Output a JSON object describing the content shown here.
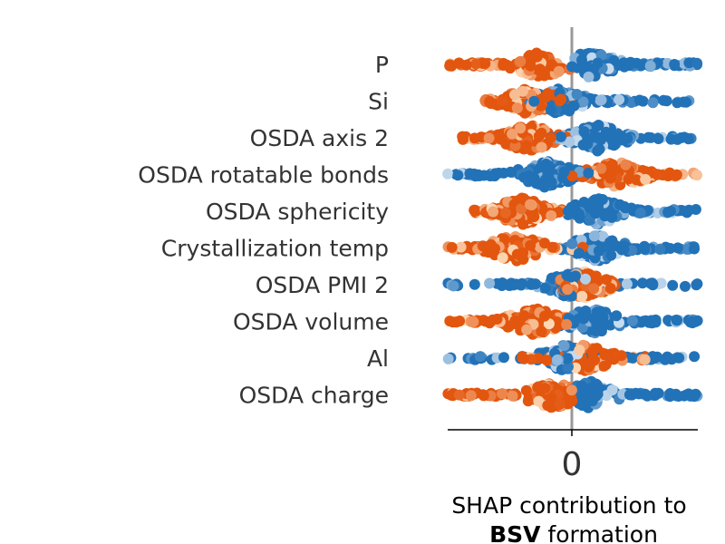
{
  "chart_data": {
    "type": "scatter",
    "subtype": "shap-beeswarm",
    "features": [
      "P",
      "Si",
      "OSDA axis 2",
      "OSDA rotatable bonds",
      "OSDA sphericity",
      "Crystallization temp",
      "OSDA PMI 2",
      "OSDA volume",
      "Al",
      "OSDA charge"
    ],
    "x_ticks": [
      0
    ],
    "x_tick_labels": [
      "0"
    ],
    "xlim": [
      -1,
      1
    ],
    "xlabel_line1": "SHAP contribution to",
    "xlabel_bold": "BSV",
    "xlabel_rest": " formation",
    "zero_line": true,
    "grid": false,
    "colors": {
      "high": "#2272b8",
      "high_light": "#c8dcef",
      "low": "#e3560f",
      "low_light": "#fdd8b4",
      "zero_line": "#999999",
      "axis": "#000000",
      "text": "#333333"
    },
    "feature_shapes": [
      {
        "low_range": [
          -1.0,
          -0.1
        ],
        "high_range": [
          0.0,
          1.0
        ],
        "low_density_center": -0.25,
        "high_density_center": 0.15,
        "spread_low": 0.09,
        "spread_high": 0.06
      },
      {
        "low_range": [
          -0.7,
          -0.05
        ],
        "high_range": [
          -0.35,
          1.0
        ],
        "low_density_center": -0.35,
        "high_density_center": -0.1,
        "spread_low": 0.12,
        "spread_high": 0.1
      },
      {
        "low_range": [
          -0.9,
          0.0
        ],
        "high_range": [
          -0.1,
          1.0
        ],
        "low_density_center": -0.35,
        "high_density_center": 0.2,
        "spread_low": 0.12,
        "spread_high": 0.15
      },
      {
        "low_range": [
          0.0,
          1.0
        ],
        "high_range": [
          -1.0,
          0.2
        ],
        "low_density_center": 0.35,
        "high_density_center": -0.2,
        "spread_low": 0.12,
        "spread_high": 0.1
      },
      {
        "low_range": [
          -0.8,
          -0.05
        ],
        "high_range": [
          0.0,
          1.0
        ],
        "low_density_center": -0.4,
        "high_density_center": 0.2,
        "spread_low": 0.12,
        "spread_high": 0.12
      },
      {
        "low_range": [
          -1.0,
          0.1
        ],
        "high_range": [
          -0.1,
          1.0
        ],
        "low_density_center": -0.45,
        "high_density_center": 0.2,
        "spread_low": 0.14,
        "spread_high": 0.13
      },
      {
        "low_range": [
          -0.1,
          0.35
        ],
        "high_range": [
          -1.0,
          1.0
        ],
        "low_density_center": 0.1,
        "high_density_center": 0.0,
        "spread_low": 0.06,
        "spread_high": 0.07
      },
      {
        "low_range": [
          -1.0,
          0.0
        ],
        "high_range": [
          0.0,
          1.0
        ],
        "low_density_center": -0.3,
        "high_density_center": 0.15,
        "spread_low": 0.1,
        "spread_high": 0.11
      },
      {
        "low_range": [
          -0.4,
          0.6
        ],
        "high_range": [
          -1.0,
          1.0
        ],
        "low_density_center": 0.1,
        "high_density_center": -0.05,
        "spread_low": 0.12,
        "spread_high": 0.08
      },
      {
        "low_range": [
          -1.0,
          0.0
        ],
        "high_range": [
          0.0,
          1.0
        ],
        "low_density_center": -0.15,
        "high_density_center": 0.15,
        "spread_low": 0.08,
        "spread_high": 0.06
      }
    ]
  }
}
